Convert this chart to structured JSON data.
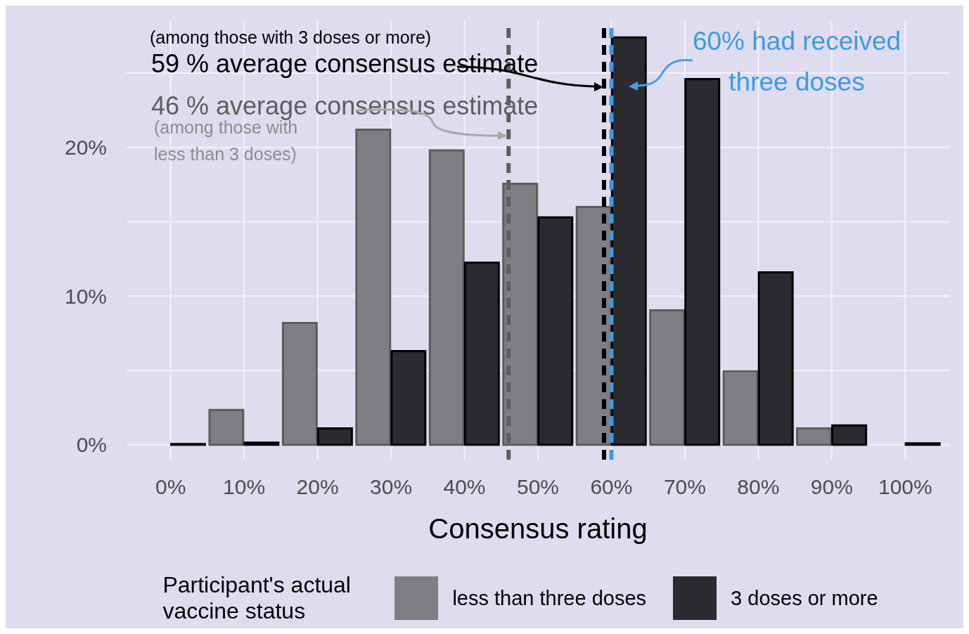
{
  "chart_data": {
    "type": "bar",
    "xlabel": "Consensus rating",
    "legend_title": "Participant's actual vaccine status",
    "x": [
      0,
      10,
      20,
      30,
      40,
      50,
      60,
      70,
      80,
      90,
      100
    ],
    "series": [
      {
        "name": "less than three doses",
        "color": "#7f7e83",
        "values": [
          0,
          2.35,
          8.2,
          21.2,
          19.8,
          17.55,
          16,
          9.05,
          4.95,
          1.1,
          0
        ]
      },
      {
        "name": "3 doses or more",
        "color": "#2b2a2f",
        "values": [
          0.05,
          0.15,
          1.1,
          6.3,
          12.25,
          15.3,
          27.4,
          24.6,
          11.6,
          1.3,
          0.1
        ]
      }
    ],
    "xlim": [
      -6,
      106
    ],
    "xticks": [
      {
        "value": 0,
        "label": "0%"
      },
      {
        "value": 10,
        "label": "10%"
      },
      {
        "value": 20,
        "label": "20%"
      },
      {
        "value": 30,
        "label": "30%"
      },
      {
        "value": 40,
        "label": "40%"
      },
      {
        "value": 50,
        "label": "50%"
      },
      {
        "value": 60,
        "label": "60%"
      },
      {
        "value": 70,
        "label": "70%"
      },
      {
        "value": 80,
        "label": "80%"
      },
      {
        "value": 90,
        "label": "90%"
      },
      {
        "value": 100,
        "label": "100%"
      }
    ],
    "ylim": [
      -1,
      28.5
    ],
    "yticks": [
      {
        "value": 0,
        "label": "0%"
      },
      {
        "value": 5,
        "label": null
      },
      {
        "value": 10,
        "label": "10%"
      },
      {
        "value": 15,
        "label": null
      },
      {
        "value": 20,
        "label": "20%"
      },
      {
        "value": 25,
        "label": null
      }
    ],
    "grid": true,
    "legend": "bottom",
    "ref_lines": [
      {
        "axis": "x",
        "value": 46,
        "label": "46 % average consensus estimate",
        "color": "#5e5e5e",
        "line_style": "dashed"
      },
      {
        "axis": "x",
        "value": 59,
        "label": "59 % average consensus estimate",
        "color": "#000000",
        "line_style": "dashed"
      },
      {
        "axis": "x",
        "value": 60,
        "label": "60% had received three doses",
        "color": "#3d9be0",
        "line_style": "dashed"
      }
    ],
    "annotations": [
      "(among those with 3 doses or more)",
      "(among those with less than 3 doses)"
    ]
  }
}
